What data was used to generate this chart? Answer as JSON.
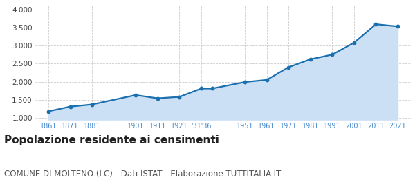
{
  "years": [
    1861,
    1871,
    1881,
    1901,
    1911,
    1921,
    1931,
    1936,
    1951,
    1961,
    1971,
    1981,
    1991,
    2001,
    2011,
    2021
  ],
  "population": [
    1180,
    1310,
    1370,
    1630,
    1540,
    1580,
    1810,
    1810,
    1990,
    2050,
    2400,
    2620,
    2750,
    3080,
    3590,
    3530
  ],
  "line_color": "#1a6faf",
  "fill_color": "#cce0f5",
  "marker_color": "#1a6faf",
  "background_color": "#ffffff",
  "fig_background_color": "#ffffff",
  "grid_color": "#cccccc",
  "title": "Popolazione residente ai censimenti",
  "subtitle": "COMUNE DI MOLTENO (LC) - Dati ISTAT - Elaborazione TUTTITALIA.IT",
  "ylabel_ticks": [
    1000,
    1500,
    2000,
    2500,
    3000,
    3500,
    4000
  ],
  "ylim": [
    950,
    4100
  ],
  "xlim": [
    1855,
    2027
  ],
  "title_fontsize": 11,
  "subtitle_fontsize": 8.5,
  "tick_label_color": "#4488cc",
  "ytick_label_color": "#444444",
  "x_tick_positions": [
    1861,
    1871,
    1881,
    1901,
    1911,
    1921,
    1931,
    1951,
    1961,
    1971,
    1981,
    1991,
    2001,
    2011,
    2021
  ],
  "x_tick_labels": [
    "1861",
    "1871",
    "1881",
    "1901",
    "1911",
    "1921",
    "'31'36",
    "1951",
    "1961",
    "1971",
    "1981",
    "1991",
    "2001",
    "2011",
    "2021"
  ]
}
